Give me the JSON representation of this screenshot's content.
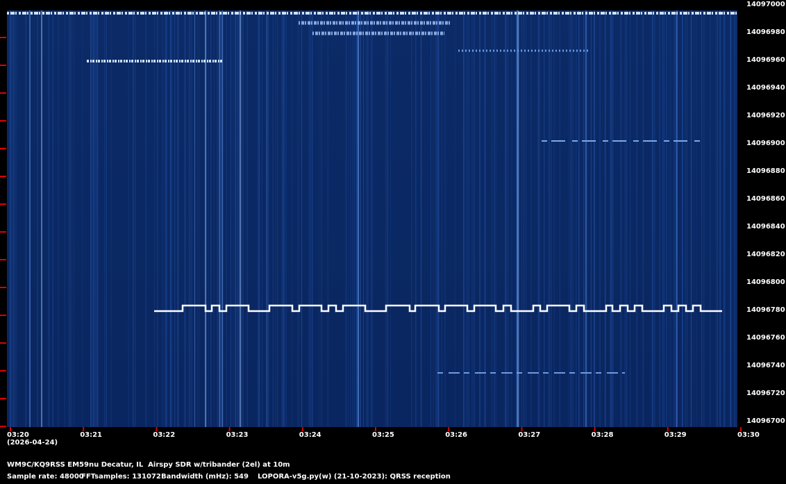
{
  "y_axis_labels": [
    "14097000",
    "14096980",
    "14096960",
    "14096940",
    "14096920",
    "14096900",
    "14096880",
    "14096860",
    "14096840",
    "14096820",
    "14096800",
    "14096780",
    "14096760",
    "14096740",
    "14096720",
    "14096700"
  ],
  "x_axis_labels": [
    "03:20",
    "03:21",
    "03:22",
    "03:23",
    "03:24",
    "03:25",
    "03:26",
    "03:27",
    "03:28",
    "03:29",
    "03:30"
  ],
  "date": "(2026-04-24)",
  "station": "WM9C/KQ9RSS EM59nu Decatur, IL  Airspy SDR w/tribander (2el) at 10m",
  "footer": [
    "Sample rate: 48000",
    "FFTsamples: 131072",
    "Bandwidth (mHz): 549",
    "LOPORA-v5g.py(w) (21-10-2023): QRSS reception"
  ]
}
